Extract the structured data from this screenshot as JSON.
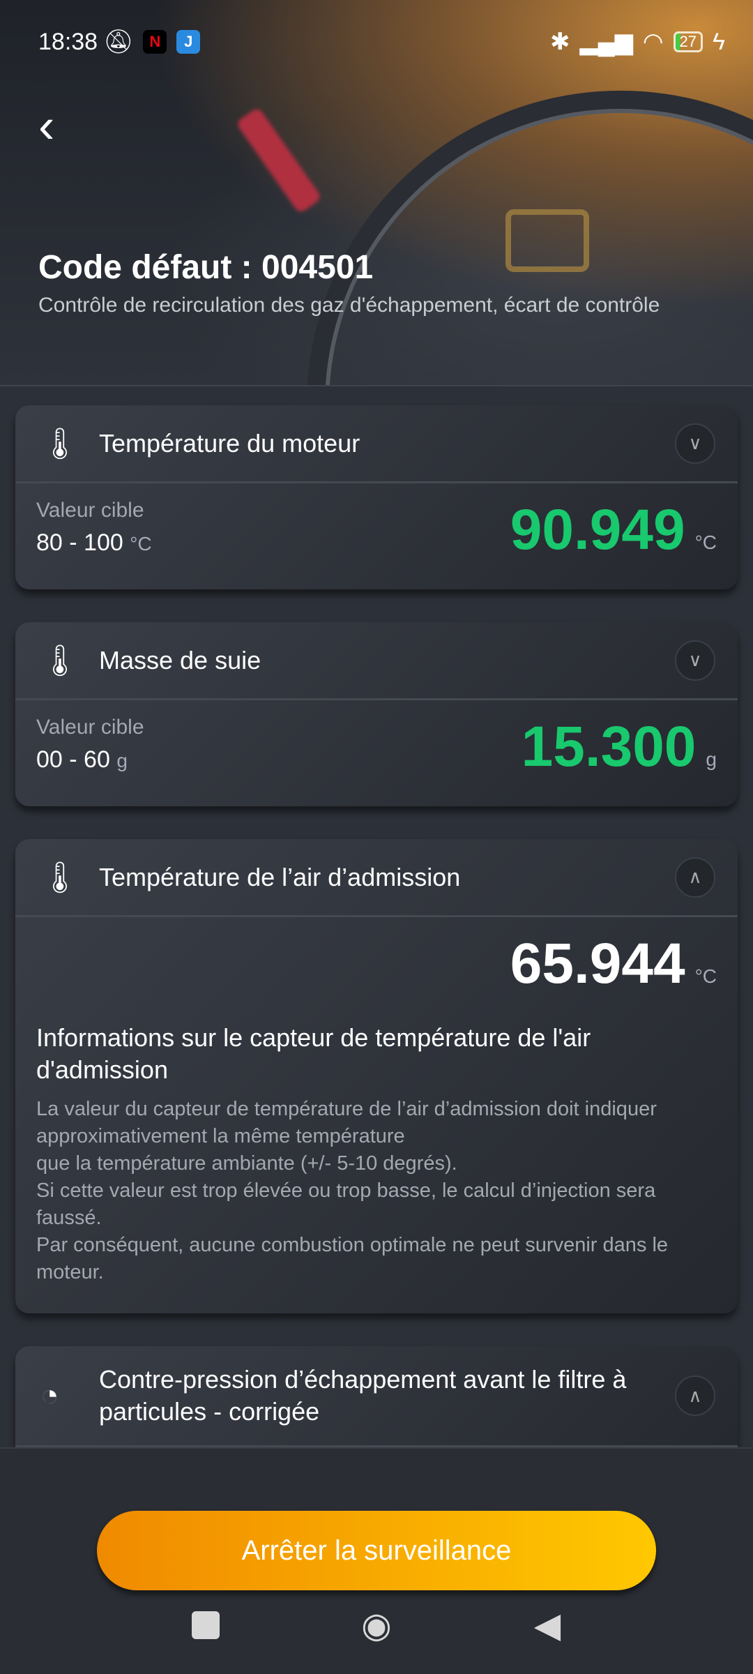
{
  "status": {
    "time": "18:38",
    "battery": "27"
  },
  "header": {
    "title": "Code défaut : 004501",
    "subtitle": "Contrôle de recirculation des gaz d'échappement, écart de contrôle"
  },
  "cards": [
    {
      "title": "Température du moteur",
      "target_label": "Valeur cible",
      "target_range": "80 - 100",
      "unit": "°C",
      "value": "90.949",
      "value_color": "#18c96e",
      "expanded": false
    },
    {
      "title": "Masse de suie",
      "target_label": "Valeur cible",
      "target_range": "00 - 60",
      "unit": "g",
      "value": "15.300",
      "value_color": "#18c96e",
      "expanded": false
    },
    {
      "title": "Température de l’air d’admission",
      "unit": "°C",
      "value": "65.944",
      "expanded": true,
      "info_title": "Informations sur le capteur de température de l'air d'admission",
      "info_text": "La valeur du capteur de température de l’air d’admission doit indiquer approximativement la même température\n que la température ambiante (+/- 5-10 degrés).\n Si cette valeur est trop élevée ou trop basse, le calcul d’injection sera faussé.\n Par conséquent, aucune combustion optimale ne peut survenir dans le moteur."
    },
    {
      "title": "Contre-pression d’échappement avant le filtre à particules - corrigée",
      "expanded": true
    }
  ],
  "action": {
    "stop_label": "Arrêter la surveillance"
  }
}
